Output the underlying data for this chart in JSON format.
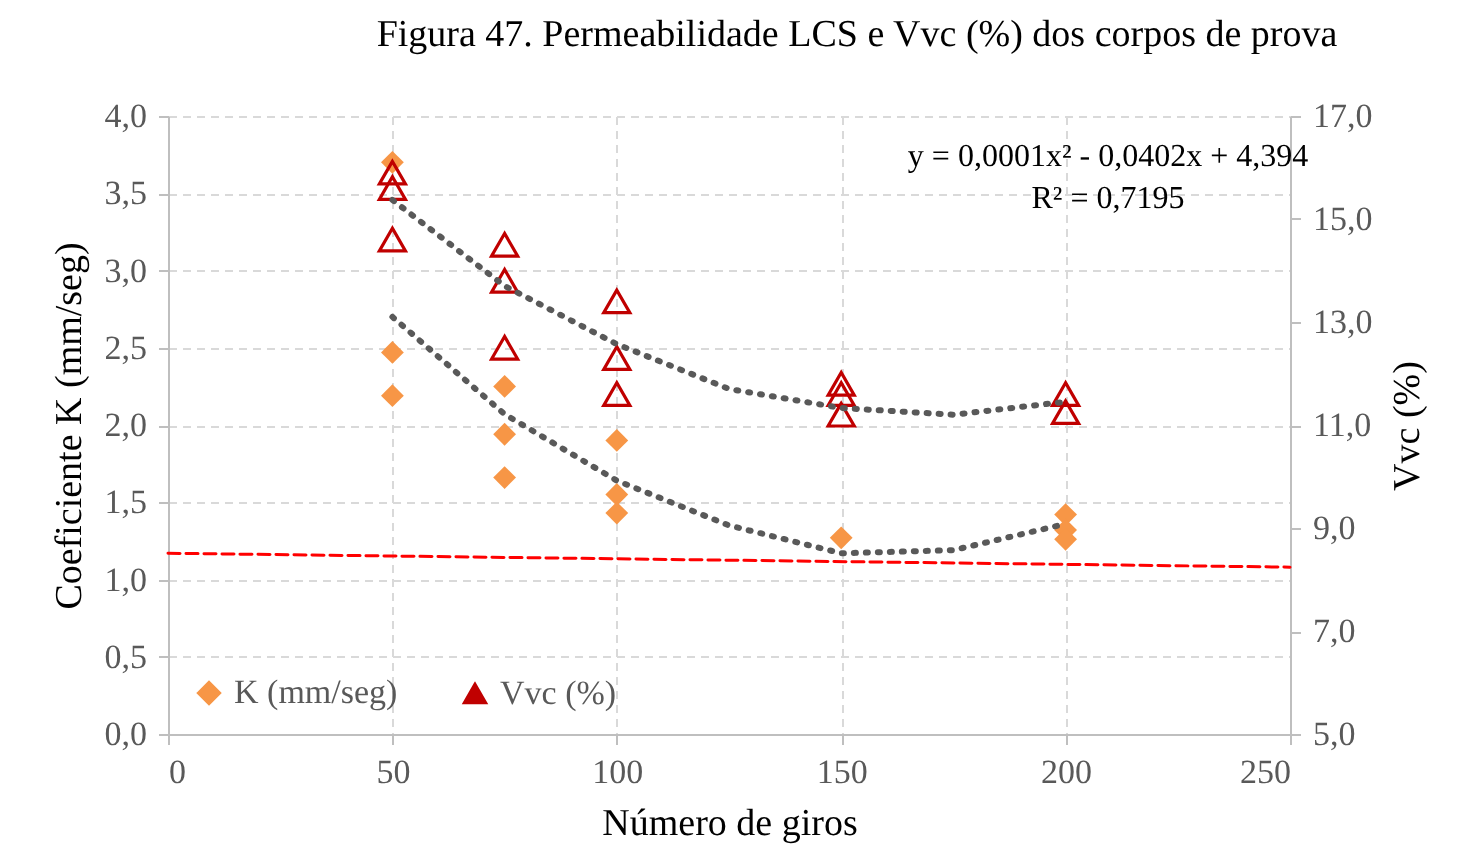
{
  "chart_data": {
    "type": "scatter",
    "title": "Figura 47. Permeabilidade LCS e Vvc (%) dos corpos de prova",
    "xlabel": "Número de giros",
    "ylabel": "Coeficiente K (mm/seg)",
    "y2label": "Vvc (%)",
    "xlim": [
      0,
      250
    ],
    "xticks": [
      0,
      50,
      100,
      150,
      200,
      250
    ],
    "ylim": [
      0,
      4
    ],
    "yticks": [
      {
        "value": 0,
        "label": "0,0"
      },
      {
        "value": 0.5,
        "label": "0,5"
      },
      {
        "value": 1,
        "label": "1,0"
      },
      {
        "value": 1.5,
        "label": "1,5"
      },
      {
        "value": 2,
        "label": "2,0"
      },
      {
        "value": 2.5,
        "label": "2,5"
      },
      {
        "value": 3,
        "label": "3,0"
      },
      {
        "value": 3.5,
        "label": "3,5"
      },
      {
        "value": 4,
        "label": "4,0"
      }
    ],
    "y2lim": [
      5,
      17
    ],
    "y2ticks": [
      {
        "value": 5,
        "label": "5,0"
      },
      {
        "value": 7,
        "label": "7,0"
      },
      {
        "value": 9,
        "label": "9,0"
      },
      {
        "value": 11,
        "label": "11,0"
      },
      {
        "value": 13,
        "label": "13,0"
      },
      {
        "value": 15,
        "label": "15,0"
      },
      {
        "value": 17,
        "label": "17,0"
      }
    ],
    "grid": true,
    "legend": "bottom left",
    "annotations": [
      "y = 0,0001x² - 0,0402x + 4,394",
      "R² = 0,7195"
    ],
    "series": [
      {
        "name": "K (mm/seg)",
        "color": "#f79646",
        "marker": "diamond",
        "x": [
          50,
          50,
          50,
          75,
          75,
          75,
          100,
          100,
          100,
          150,
          200,
          200,
          200
        ],
        "values": [
          3.7,
          2.47,
          2.19,
          2.25,
          1.94,
          1.66,
          1.9,
          1.55,
          1.43,
          1.27,
          1.42,
          1.32,
          1.26
        ]
      },
      {
        "name": "Vvc (%)",
        "color": "#c00000",
        "marker": "triangle",
        "axis": "y2",
        "x": [
          50,
          50,
          50,
          75,
          75,
          75,
          100,
          100,
          100,
          150,
          150,
          150,
          200,
          200
        ],
        "values": [
          15.9,
          15.6,
          14.6,
          14.5,
          13.8,
          12.5,
          13.4,
          12.3,
          11.6,
          11.8,
          11.6,
          11.2,
          11.6,
          11.25
        ]
      },
      {
        "type": "line",
        "color": "#595959",
        "line_style": "dotted",
        "x": [
          50,
          75,
          100,
          125,
          150,
          175,
          200
        ],
        "values": [
          2.7,
          2.07,
          1.64,
          1.35,
          1.17,
          1.19,
          1.36
        ]
      },
      {
        "type": "line",
        "color": "#595959",
        "line_style": "dotted",
        "axis": "y2",
        "x": [
          50,
          75,
          100,
          125,
          150,
          175,
          200
        ],
        "values": [
          15.37,
          13.7,
          12.57,
          11.7,
          11.33,
          11.2,
          11.45
        ]
      },
      {
        "type": "line",
        "color": "#ff0000",
        "line_style": "dashed",
        "x": [
          0,
          250
        ],
        "values": [
          1.17,
          1.08
        ]
      }
    ]
  }
}
